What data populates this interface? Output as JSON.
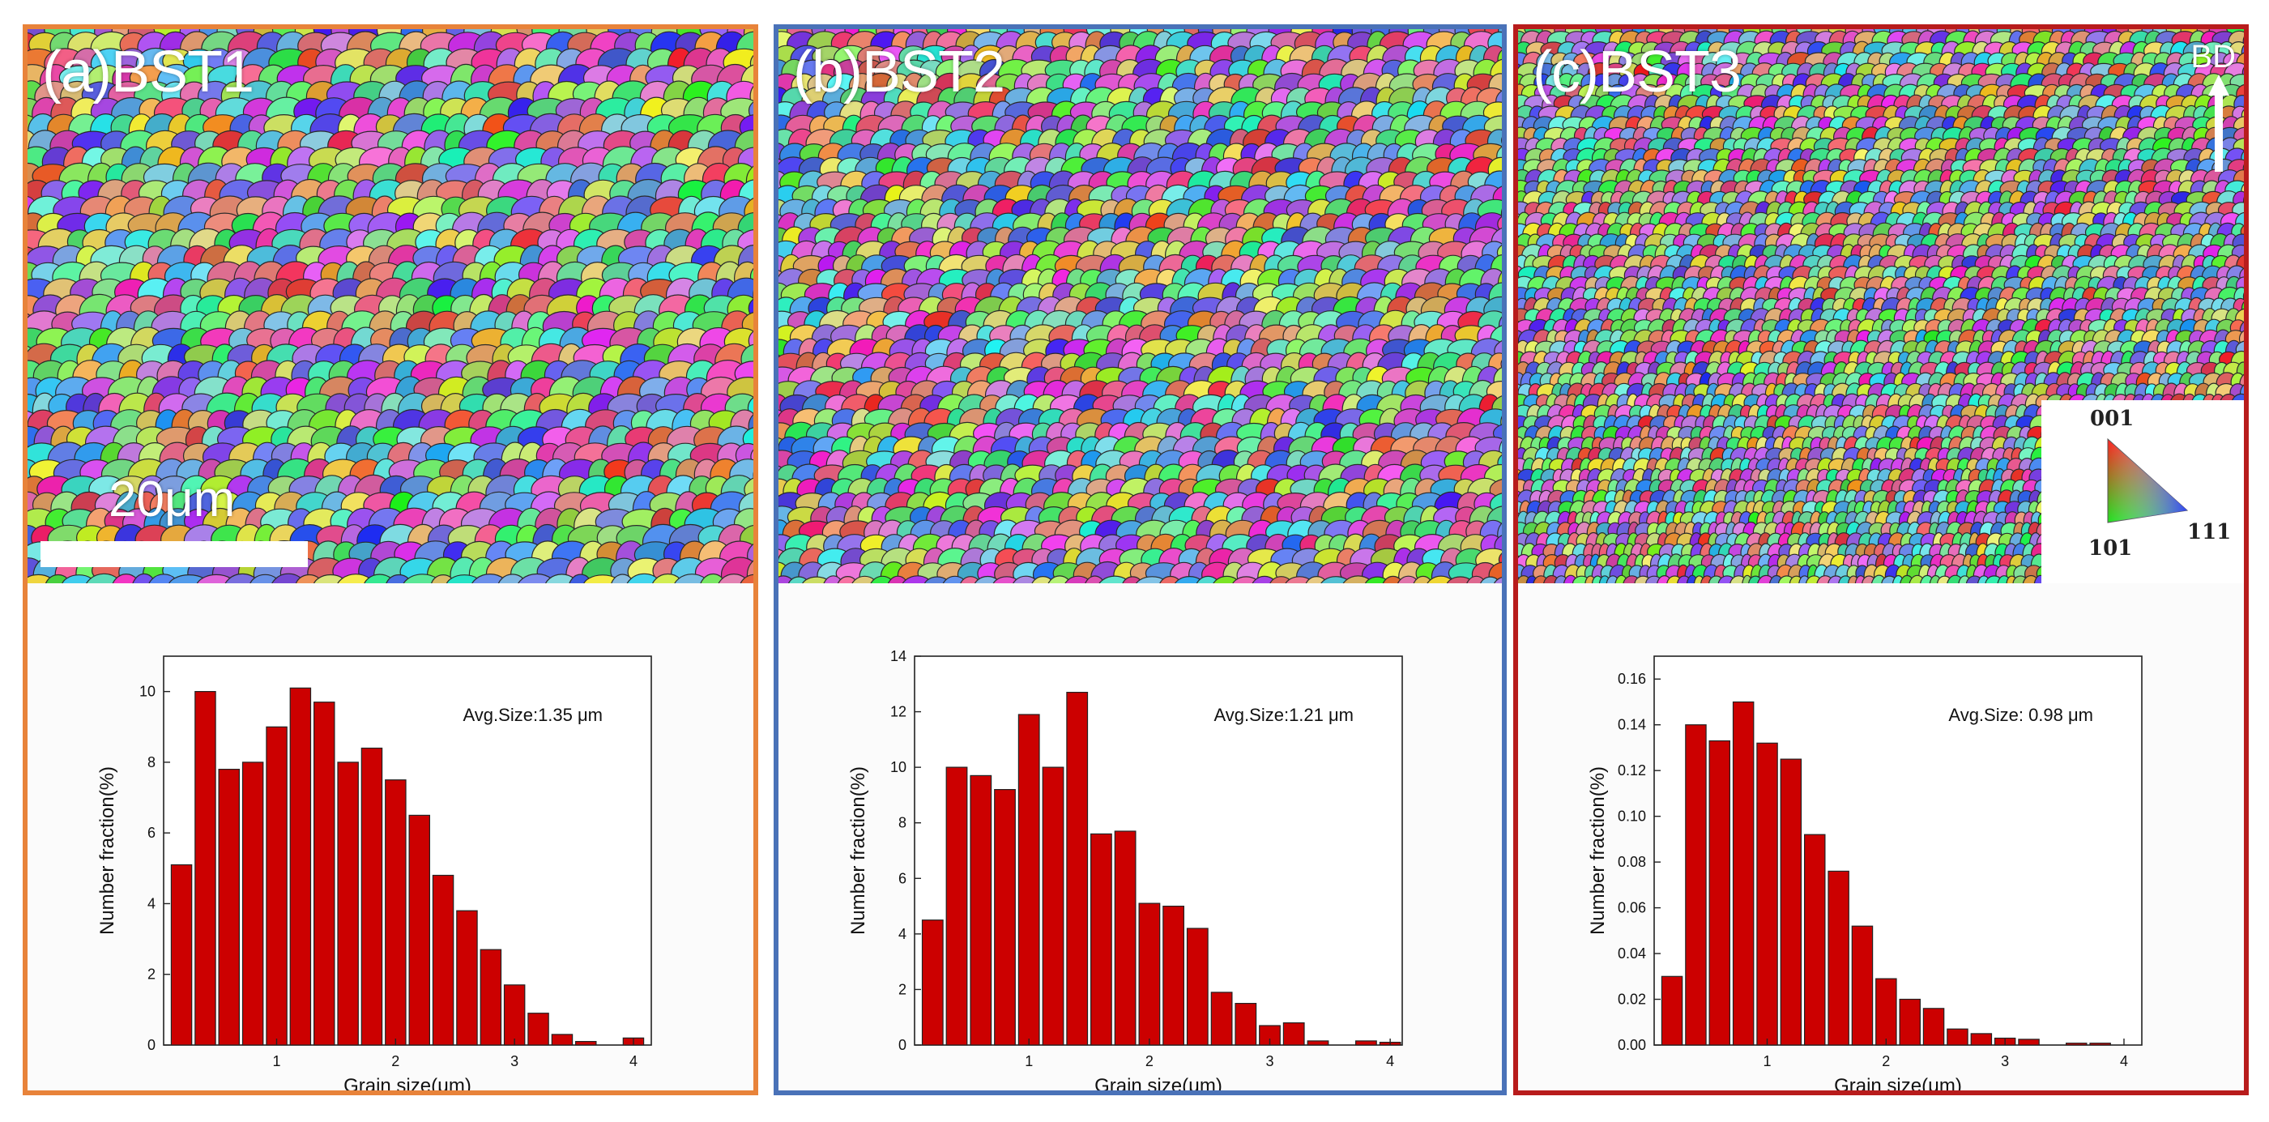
{
  "figure": {
    "scale_label": "20μm",
    "bd_label": "BD",
    "ipf_legend": {
      "top": "001",
      "left": "101",
      "right": "111"
    }
  },
  "colors": {
    "bar": "#cc0000",
    "panel_a": "#e8833a",
    "panel_b": "#4a72b8",
    "panel_c": "#b81c1c"
  },
  "panels": [
    {
      "title": "(a)BST1",
      "avg": "Avg.Size:1.35 μm"
    },
    {
      "title": "(b)BST2",
      "avg": "Avg.Size:1.21 μm"
    },
    {
      "title": "(c)BST3",
      "avg": "Avg.Size: 0.98 μm"
    }
  ],
  "chart_data": [
    {
      "type": "bar",
      "title": "(a)BST1",
      "xlabel": "Grain size(μm)",
      "ylabel": "Number fraction(%)",
      "x": [
        0.2,
        0.4,
        0.6,
        0.8,
        1.0,
        1.2,
        1.4,
        1.6,
        1.8,
        2.0,
        2.2,
        2.4,
        2.6,
        2.8,
        3.0,
        3.2,
        3.4,
        3.6,
        3.8,
        4.0
      ],
      "values": [
        5.1,
        10.0,
        7.8,
        8.0,
        9.0,
        10.1,
        9.7,
        8.0,
        8.4,
        7.5,
        6.5,
        4.8,
        3.8,
        2.7,
        1.7,
        0.9,
        0.3,
        0.1,
        0.0,
        0.2
      ],
      "xlim": [
        0.05,
        4.15
      ],
      "ylim": [
        0,
        11
      ],
      "xticks": [
        1,
        2,
        3,
        4
      ],
      "xtick_labels": [
        "1",
        "2",
        "3",
        "4"
      ],
      "yticks": [
        0,
        2,
        4,
        6,
        8,
        10
      ],
      "ytick_labels": [
        "0",
        "2",
        "4",
        "6",
        "8",
        "10"
      ],
      "annotation": "Avg.Size:1.35 μm"
    },
    {
      "type": "bar",
      "title": "(b)BST2",
      "xlabel": "Grain size(μm)",
      "ylabel": "Number fraction(%)",
      "x": [
        0.2,
        0.4,
        0.6,
        0.8,
        1.0,
        1.2,
        1.4,
        1.6,
        1.8,
        2.0,
        2.2,
        2.4,
        2.6,
        2.8,
        3.0,
        3.2,
        3.4,
        3.6,
        3.8,
        4.0
      ],
      "values": [
        4.5,
        10.0,
        9.7,
        9.2,
        11.9,
        10.0,
        12.7,
        7.6,
        7.7,
        5.1,
        5.0,
        4.2,
        1.9,
        1.5,
        0.7,
        0.8,
        0.15,
        0.0,
        0.15,
        0.1
      ],
      "xlim": [
        0.05,
        4.1
      ],
      "ylim": [
        0,
        14
      ],
      "xticks": [
        1,
        2,
        3,
        4
      ],
      "xtick_labels": [
        "1",
        "2",
        "3",
        "4"
      ],
      "yticks": [
        0,
        2,
        4,
        6,
        8,
        10,
        12,
        14
      ],
      "ytick_labels": [
        "0",
        "2",
        "4",
        "6",
        "8",
        "10",
        "12",
        "14"
      ],
      "annotation": "Avg.Size:1.21 μm"
    },
    {
      "type": "bar",
      "title": "(c)BST3",
      "xlabel": "Grain size(μm)",
      "ylabel": "Number fraction(%)",
      "x": [
        0.2,
        0.4,
        0.6,
        0.8,
        1.0,
        1.2,
        1.4,
        1.6,
        1.8,
        2.0,
        2.2,
        2.4,
        2.6,
        2.8,
        3.0,
        3.2,
        3.4,
        3.6,
        3.8
      ],
      "values": [
        0.03,
        0.14,
        0.133,
        0.15,
        0.132,
        0.125,
        0.092,
        0.076,
        0.052,
        0.029,
        0.02,
        0.016,
        0.007,
        0.005,
        0.003,
        0.0025,
        0.0,
        0.0008,
        0.0008
      ],
      "xlim": [
        0.05,
        4.15
      ],
      "ylim": [
        0,
        0.17
      ],
      "xticks": [
        1,
        2,
        3,
        4
      ],
      "xtick_labels": [
        "1",
        "2",
        "3",
        "4"
      ],
      "yticks": [
        0,
        0.02,
        0.04,
        0.06,
        0.08,
        0.1,
        0.12,
        0.14,
        0.16
      ],
      "ytick_labels": [
        "0.00",
        "0.02",
        "0.04",
        "0.06",
        "0.08",
        "0.10",
        "0.12",
        "0.14",
        "0.16"
      ],
      "annotation": "Avg.Size: 0.98 μm"
    }
  ]
}
